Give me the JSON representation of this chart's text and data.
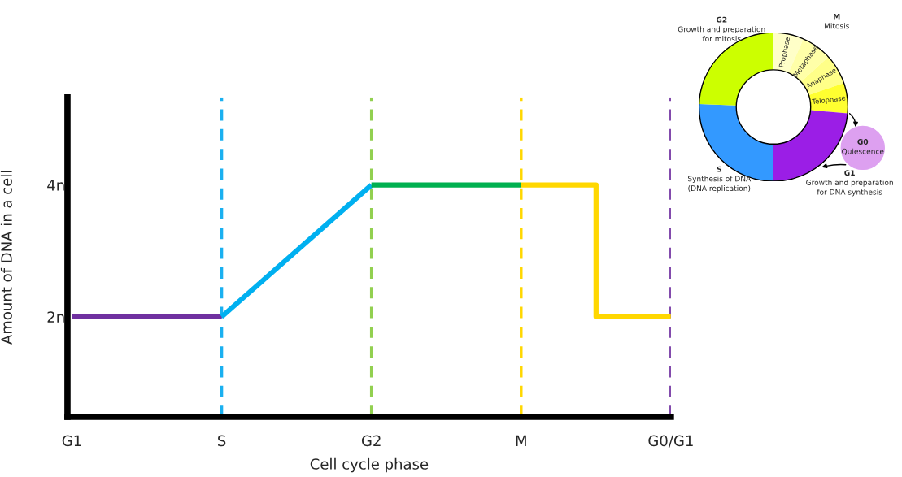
{
  "chart_data": [
    {
      "type": "line",
      "xlabel": "Cell cycle phase",
      "ylabel": "Amount of DNA in a cell",
      "categories": [
        "G1",
        "S",
        "G2",
        "M",
        "G0/G1"
      ],
      "ylim": [
        0.48,
        5.33
      ],
      "yticks": [
        {
          "value": 2,
          "label": "2n"
        },
        {
          "value": 4,
          "label": "4n"
        }
      ],
      "series": [
        {
          "color": "#7030a0",
          "values": [
            2,
            2,
            null,
            null,
            null
          ]
        },
        {
          "color": "#00b0f0",
          "values": [
            null,
            2,
            4,
            null,
            null
          ]
        },
        {
          "color": "#00b050",
          "values": [
            null,
            null,
            4,
            4,
            null
          ]
        },
        {
          "type": "step",
          "color": "#ffd700",
          "values": [
            null,
            null,
            null,
            4,
            2
          ]
        }
      ],
      "ref_lines": [
        {
          "axis": "x",
          "value": "S",
          "color": "#1ab0f0",
          "line_style": "dashed"
        },
        {
          "axis": "x",
          "value": "G2",
          "color": "#92d050",
          "line_style": "dashed"
        },
        {
          "axis": "x",
          "value": "M",
          "color": "#ffd700",
          "line_style": "dashed"
        },
        {
          "axis": "x",
          "value": "G0/G1",
          "color": "#7030a0",
          "line_style": "dashed"
        }
      ]
    },
    {
      "type": "donut",
      "categories": [
        "Prophase",
        "Metaphase",
        "Anaphase",
        "Telophase",
        "G1\nGrowth and preparation\nfor DNA synthesis",
        "S\nSynthesis of DNA\n(DNA replication)",
        "G2\nGrowth and preparation\nfor mitosis"
      ],
      "values": [
        6.6,
        6.6,
        6.6,
        6.6,
        23.6,
        25.6,
        24.4
      ],
      "colors": [
        "#ffffc8",
        "#ffffa8",
        "#ffff88",
        "#ffff30",
        "#9b1ee6",
        "#3399ff",
        "#ccff00"
      ],
      "annotations": [
        "M\nMitosis",
        "G0\nQuiescence"
      ]
    }
  ]
}
